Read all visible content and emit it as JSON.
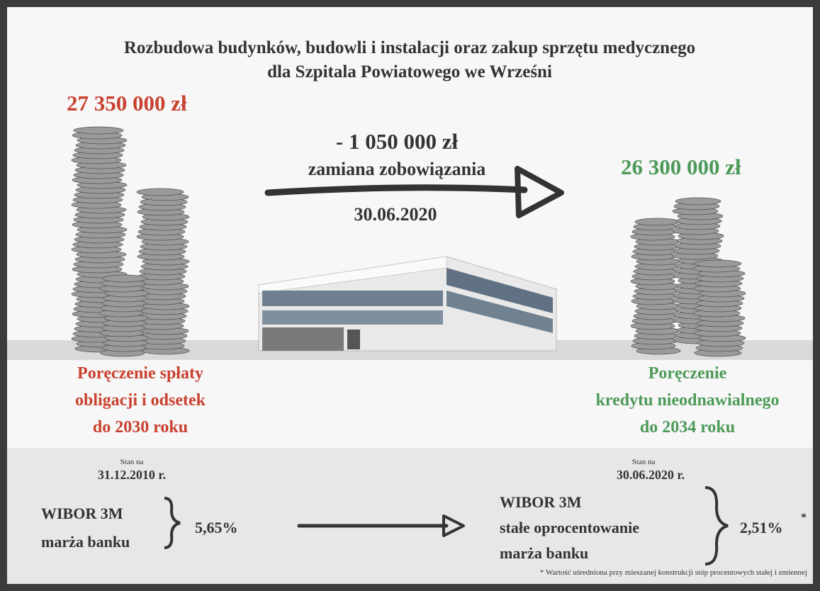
{
  "header": {
    "title_line1": "Rozbudowa budynków, budowli i instalacji oraz zakup sprzętu medycznego",
    "title_line2": "dla Szpitala Powiatowego we Wrześni"
  },
  "left": {
    "amount": "27 350 000 zł",
    "caption": [
      "Poręczenie spłaty",
      "obligacji i odsetek",
      "do 2030 roku"
    ]
  },
  "center": {
    "change": "- 1 050 000 zł",
    "label": "zamiana zobowiązania",
    "date": "30.06.2020"
  },
  "right": {
    "amount": "26 300 000 zł",
    "caption": [
      "Poręczenie",
      "kredytu nieodnawialnego",
      "do 2034 roku"
    ]
  },
  "bottom": {
    "left": {
      "state_label": "Stan na",
      "state_date": "31.12.2010 r.",
      "items": [
        "WIBOR 3M",
        "marża banku"
      ],
      "rate": "5,65%"
    },
    "right": {
      "state_label": "Stan na",
      "state_date": "30.06.2020 r.",
      "items": [
        "WIBOR 3M",
        "stałe oprocentowanie",
        "marża banku"
      ],
      "rate": "2,51%",
      "rate_mark": "*"
    },
    "footnote": "* Wartość uśredniona przy mieszanej konstrukcji stóp procentowych stałej i zmiennej"
  }
}
